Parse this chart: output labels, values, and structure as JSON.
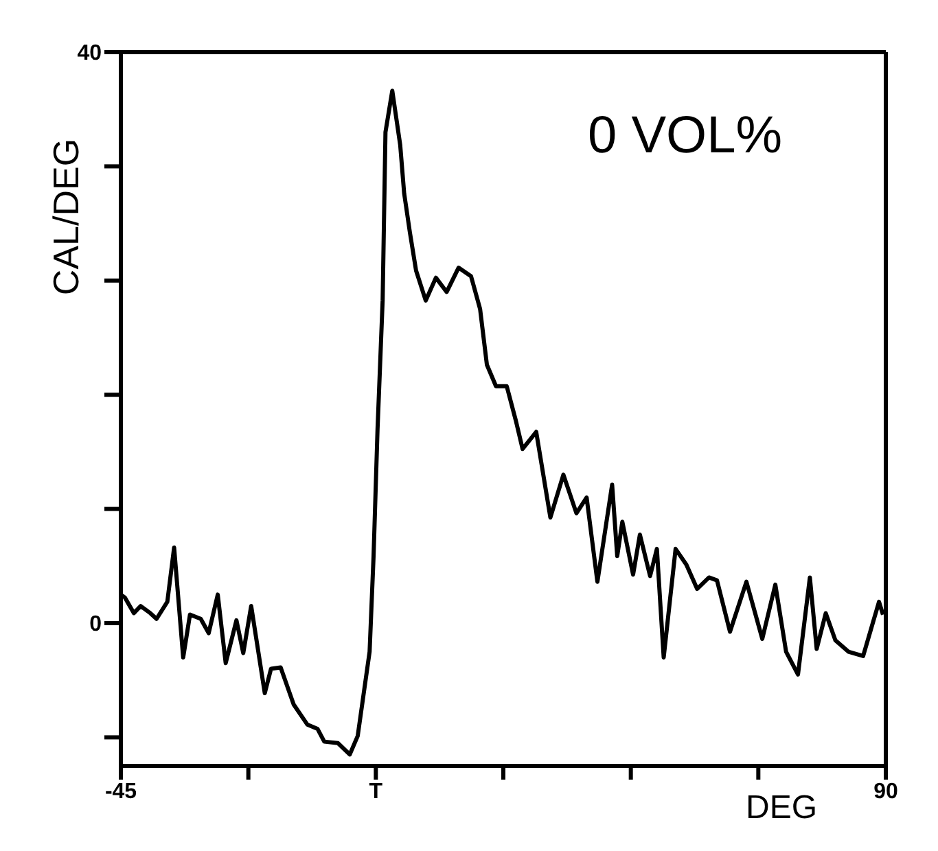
{
  "chart_data": {
    "type": "line",
    "xlabel": "DEG",
    "ylabel": "CAL/DEG",
    "annotations": [
      "0 VOL%"
    ],
    "x": [
      -45.0,
      -44.3,
      -42.7,
      -41.5,
      -39.8,
      -38.7,
      -36.8,
      -35.6,
      -34.0,
      -32.8,
      -30.9,
      -29.5,
      -27.9,
      -26.5,
      -24.6,
      -23.4,
      -22.0,
      -19.6,
      -18.5,
      -16.8,
      -14.5,
      -12.1,
      -10.3,
      -9.1,
      -6.7,
      -4.6,
      -3.2,
      -1.1,
      -0.4,
      0.3,
      1.2,
      1.7,
      2.9,
      4.3,
      5.0,
      6.0,
      7.1,
      8.8,
      10.6,
      12.5,
      14.6,
      16.8,
      18.4,
      19.6,
      21.2,
      23.1,
      24.7,
      25.9,
      28.3,
      30.8,
      33.1,
      35.4,
      37.2,
      39.1,
      41.7,
      42.6,
      43.5,
      45.4,
      46.6,
      48.4,
      49.6,
      50.8,
      52.9,
      54.8,
      56.7,
      58.8,
      60.2,
      62.5,
      65.4,
      68.2,
      70.5,
      72.4,
      74.5,
      76.6,
      77.8,
      79.4,
      81.1,
      83.4,
      86.0,
      88.8,
      89.5
    ],
    "values": [
      2.0,
      1.8,
      0.7,
      1.2,
      0.7,
      0.3,
      1.5,
      5.3,
      -2.4,
      0.6,
      0.3,
      -0.7,
      2.0,
      -2.8,
      0.2,
      -2.1,
      1.2,
      -4.9,
      -3.2,
      -3.1,
      -5.7,
      -7.1,
      -7.4,
      -8.3,
      -8.4,
      -9.2,
      -7.9,
      -2.0,
      4.7,
      13.6,
      22.6,
      34.4,
      37.3,
      33.5,
      30.1,
      27.4,
      24.7,
      22.6,
      24.2,
      23.2,
      24.9,
      24.3,
      22.0,
      18.1,
      16.6,
      16.6,
      14.2,
      12.2,
      13.4,
      7.4,
      10.4,
      7.7,
      8.8,
      2.9,
      9.7,
      4.7,
      7.1,
      3.4,
      6.2,
      3.3,
      5.2,
      -2.4,
      5.2,
      4.1,
      2.4,
      3.2,
      3.0,
      -0.6,
      2.9,
      -1.1,
      2.7,
      -2.0,
      -3.6,
      3.2,
      -1.8,
      0.7,
      -1.2,
      -2.0,
      -2.3,
      1.5,
      0.6
    ],
    "color": "#000000",
    "line_style": "solid",
    "marker": "none",
    "grid": false,
    "legend": false,
    "xlim": [
      -45,
      90
    ],
    "ylim": [
      -10,
      40
    ],
    "xticks": [
      -45,
      {
        "value": -22.5,
        "label": null
      },
      {
        "value": 0,
        "label": "T"
      },
      {
        "value": 22.5,
        "label": null
      },
      {
        "value": 45,
        "label": null
      },
      {
        "value": 67.5,
        "label": null
      },
      90
    ],
    "yticks": [
      {
        "value": -8,
        "label": null
      },
      0,
      {
        "value": 8,
        "label": null
      },
      {
        "value": 16,
        "label": null
      },
      {
        "value": 24,
        "label": null
      },
      {
        "value": 32,
        "label": null
      },
      40
    ]
  }
}
